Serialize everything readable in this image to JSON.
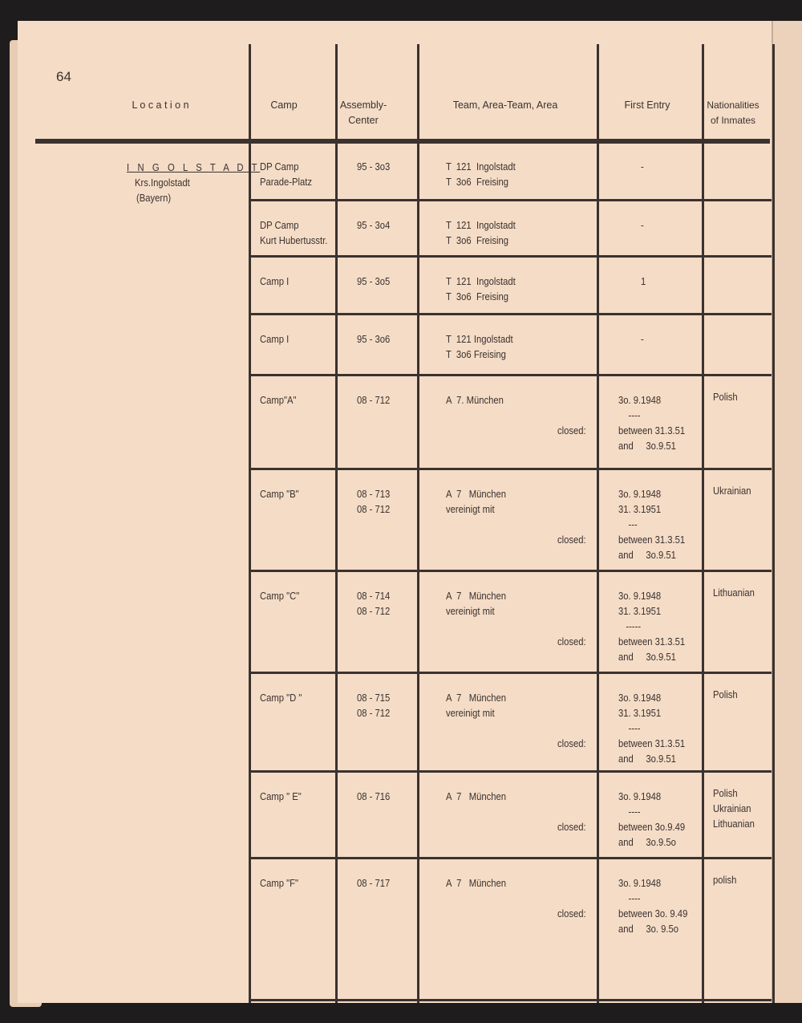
{
  "page_number": "64",
  "headers": {
    "location": "L o c a t i o n",
    "camp": "Camp",
    "assembly": "Assembly-\nCenter",
    "team": "Team, Area-Team, Area",
    "first_entry": "First Entry",
    "nationalities": "Nationalities\nof Inmates"
  },
  "location": {
    "name": "I N G O L S T A D T",
    "district": "Krs.Ingolstadt",
    "state": "(Bayern)"
  },
  "rows": [
    {
      "camp": "DP Camp\nParade-Platz",
      "assembly": "95 - 3o3",
      "team": "T  121  Ingolstadt\nT  3o6  Freising",
      "closed": "",
      "first_entry": "-",
      "nationalities": ""
    },
    {
      "camp": "DP Camp\nKurt Hubertusstr.",
      "assembly": "95 - 3o4",
      "team": "T  121  Ingolstadt\nT  3o6  Freising",
      "closed": "",
      "first_entry": "-",
      "nationalities": ""
    },
    {
      "camp": "Camp I",
      "assembly": "95 - 3o5",
      "team": "T  121  Ingolstadt\nT  3o6  Freising",
      "closed": "",
      "first_entry": "1",
      "nationalities": ""
    },
    {
      "camp": "Camp I",
      "assembly": "95 - 3o6",
      "team": "T  121 Ingolstadt\nT  3o6 Freising",
      "closed": "",
      "first_entry": "-",
      "nationalities": ""
    },
    {
      "camp": "Camp\"A\"",
      "assembly": "08 - 712",
      "team": "A  7. München",
      "closed": "closed:",
      "first_entry": "3o. 9.1948\n    ----\nbetween 31.3.51\nand     3o.9.51",
      "nationalities": "Polish"
    },
    {
      "camp": "Camp \"B\"",
      "assembly": "08 - 713\n08 - 712",
      "team": "A  7   München\nvereinigt mit",
      "closed": "closed:",
      "first_entry": "3o. 9.1948\n31. 3.1951\n    ---\nbetween 31.3.51\nand     3o.9.51",
      "nationalities": "Ukrainian"
    },
    {
      "camp": "Camp \"C\"",
      "assembly": "08 - 714\n08 - 712",
      "team": "A  7   München\nvereinigt mit",
      "closed": "closed:",
      "first_entry": "3o. 9.1948\n31. 3.1951\n   -----\nbetween 31.3.51\nand     3o.9.51",
      "nationalities": "Lithuanian"
    },
    {
      "camp": "Camp \"D \"",
      "assembly": "08 - 715\n08 - 712",
      "team": "A  7   München\nvereinigt mit",
      "closed": "closed:",
      "first_entry": "3o. 9.1948\n31. 3.1951\n    ----\nbetween 31.3.51\nand     3o.9.51",
      "nationalities": "Polish"
    },
    {
      "camp": "Camp \" E\"",
      "assembly": "08 - 716",
      "team": "A  7   München",
      "closed": "closed:",
      "first_entry": "3o. 9.1948\n    ----\nbetween 3o.9.49\nand     3o.9.5o",
      "nationalities": "Polish\nUkrainian\nLithuanian"
    },
    {
      "camp": "Camp \"F\"",
      "assembly": "08 - 717",
      "team": "A  7   München",
      "closed": "closed:",
      "first_entry": "3o. 9.1948\n    ----\nbetween 3o. 9.49\nand     3o. 9.5o",
      "nationalities": "polish"
    }
  ]
}
